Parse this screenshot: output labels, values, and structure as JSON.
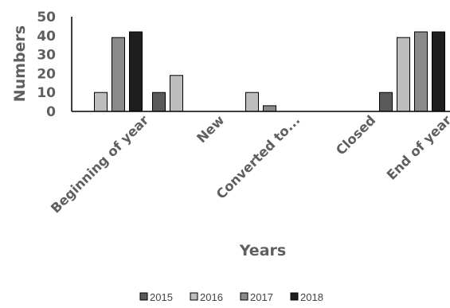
{
  "chart_data": {
    "type": "bar",
    "categories": [
      "Beginning of year",
      "New",
      "Converted to...",
      "Closed",
      "End of year"
    ],
    "series": [
      {
        "name": "2015",
        "color": "#5a5a5a",
        "values": [
          0,
          10,
          0,
          0,
          10
        ]
      },
      {
        "name": "2016",
        "color": "#bdbdbd",
        "values": [
          10,
          19,
          10,
          0,
          39
        ]
      },
      {
        "name": "2017",
        "color": "#8a8a8a",
        "values": [
          39,
          0,
          3,
          0,
          42
        ]
      },
      {
        "name": "2018",
        "color": "#1e1e1e",
        "values": [
          42,
          0,
          0,
          0,
          42
        ]
      }
    ],
    "yticks": [
      "0",
      "10",
      "20",
      "30",
      "40",
      "50"
    ],
    "ylim": [
      0,
      50
    ],
    "xlabel": "Years",
    "ylabel": "Numbers",
    "grid": false,
    "legend_position": "bottom"
  }
}
